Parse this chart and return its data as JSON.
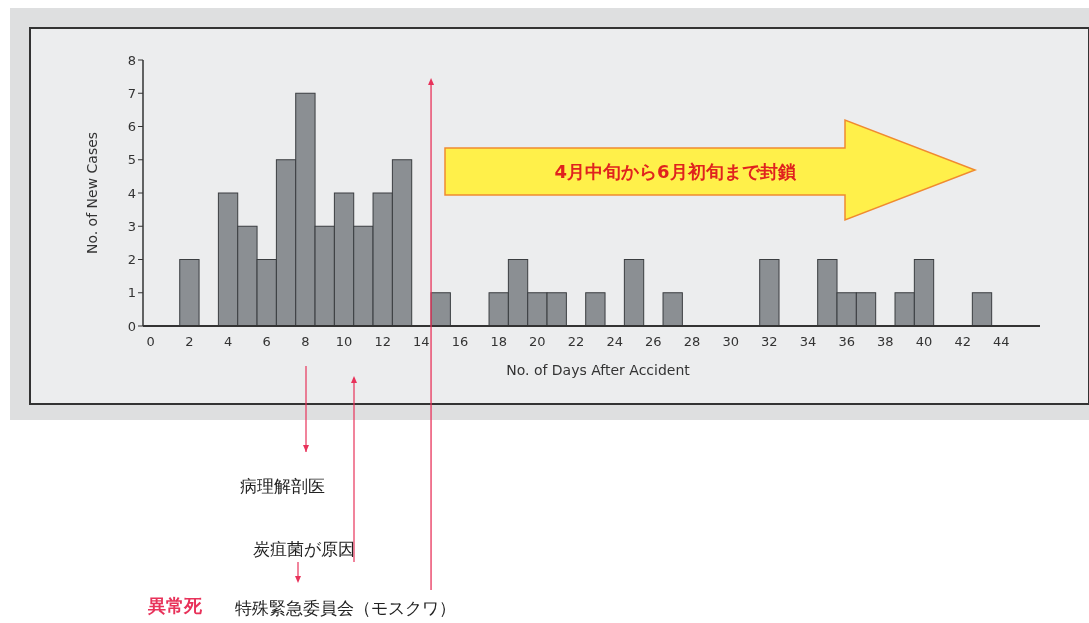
{
  "chart_data": {
    "type": "bar",
    "xlabel": "No. of Days After Accident",
    "ylabel": "No. of New Cases",
    "x": [
      2,
      4,
      5,
      6,
      7,
      8,
      9,
      10,
      11,
      12,
      13,
      15,
      18,
      19,
      20,
      21,
      23,
      25,
      27,
      32,
      35,
      36,
      37,
      39,
      40,
      43
    ],
    "values": [
      2,
      4,
      3,
      2,
      5,
      7,
      3,
      4,
      3,
      4,
      5,
      1,
      1,
      2,
      1,
      1,
      1,
      2,
      1,
      2,
      2,
      1,
      1,
      1,
      2,
      1
    ],
    "color": "#8b8f93",
    "xlim": [
      -0.4,
      46
    ],
    "xticks": [
      0,
      2,
      4,
      6,
      8,
      10,
      12,
      14,
      16,
      18,
      20,
      22,
      24,
      26,
      28,
      30,
      32,
      34,
      36,
      38,
      40,
      42,
      44
    ],
    "ylim": [
      0,
      8
    ],
    "yticks": [
      0,
      1,
      2,
      3,
      4,
      5,
      6,
      7,
      8
    ],
    "grid": false,
    "ref_lines": [
      {
        "axis": "x",
        "value": 14.5,
        "label": "特殊緊急委員会（モスクワ）",
        "color": "#e8325a"
      }
    ],
    "annotations": [
      "4月中旬から6月初旬まで封鎖",
      "病理解剖医",
      "炭疽菌が原因",
      "異常死"
    ]
  }
}
